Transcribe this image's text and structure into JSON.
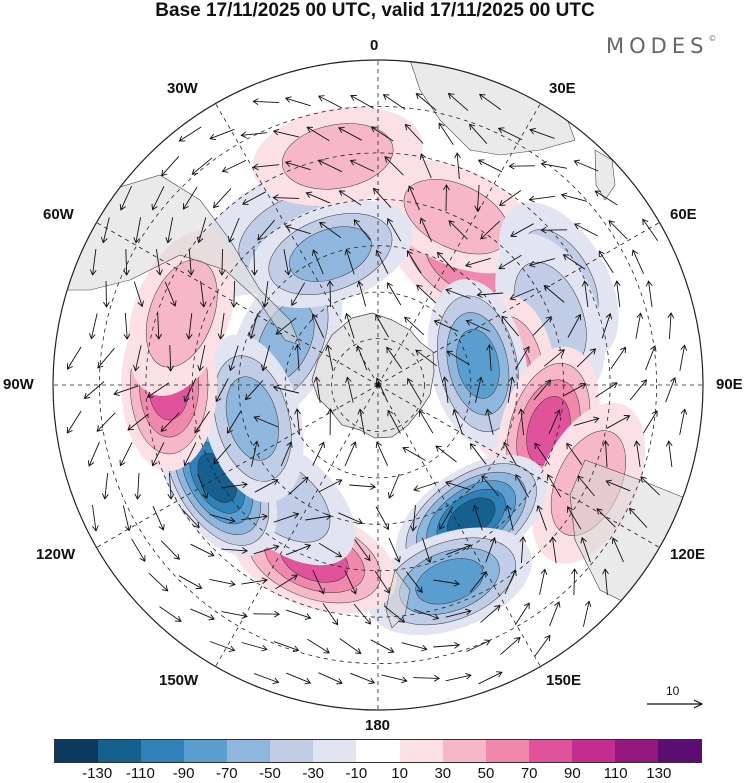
{
  "title": "Base 17/11/2025 00 UTC, valid 17/11/2025 00 UTC",
  "brand": "MODES",
  "brand_mark": "©",
  "labels": {
    "lon_0": "0",
    "lon_30e": "30E",
    "lon_60e": "60E",
    "lon_90e": "90E",
    "lon_120e": "120E",
    "lon_150e": "150E",
    "lon_180": "180",
    "lon_150w": "150W",
    "lon_120w": "120W",
    "lon_90w": "90W",
    "lon_60w": "60W",
    "lon_30w": "30W"
  },
  "reference_vector": "10",
  "colorbar": {
    "colors": [
      "#0b3a5e",
      "#15608f",
      "#2f82b8",
      "#5a9ecf",
      "#8fb7dd",
      "#c1cde6",
      "#e3e4f1",
      "#ffffff",
      "#fbe1e6",
      "#f6b8c9",
      "#ef88ac",
      "#e0539a",
      "#c22d8f",
      "#93197f",
      "#5c0d73"
    ],
    "ticks": [
      "-130",
      "-110",
      "-90",
      "-70",
      "-50",
      "-30",
      "-10",
      "10",
      "30",
      "50",
      "70",
      "90",
      "110",
      "130"
    ]
  },
  "anomalies": [
    {
      "lat": -68,
      "lon": -65,
      "v": -50
    },
    {
      "lat": -50,
      "lon": -35,
      "v": -50
    },
    {
      "lat": -52,
      "lon": -30,
      "v": -40
    },
    {
      "lat": -58,
      "lon": 35,
      "v": 60
    },
    {
      "lat": -50,
      "lon": 25,
      "v": 45
    },
    {
      "lat": -45,
      "lon": 60,
      "v": -40
    },
    {
      "lat": -50,
      "lon": 68,
      "v": -30
    },
    {
      "lat": -62,
      "lon": 88,
      "v": 50
    },
    {
      "lat": -68,
      "lon": 78,
      "v": -80
    },
    {
      "lat": -52,
      "lon": 105,
      "v": 75
    },
    {
      "lat": -40,
      "lon": 115,
      "v": 40
    },
    {
      "lat": -55,
      "lon": 145,
      "v": -120
    },
    {
      "lat": -45,
      "lon": 160,
      "v": -70
    },
    {
      "lat": -50,
      "lon": -160,
      "v": 70
    },
    {
      "lat": -58,
      "lon": -140,
      "v": -30
    },
    {
      "lat": -50,
      "lon": -120,
      "v": -110
    },
    {
      "lat": -62,
      "lon": -105,
      "v": -60
    },
    {
      "lat": -45,
      "lon": -90,
      "v": 85
    },
    {
      "lat": -45,
      "lon": -70,
      "v": 40
    },
    {
      "lat": -60,
      "lon": -20,
      "v": -60
    },
    {
      "lat": -40,
      "lon": -10,
      "v": 30
    }
  ]
}
